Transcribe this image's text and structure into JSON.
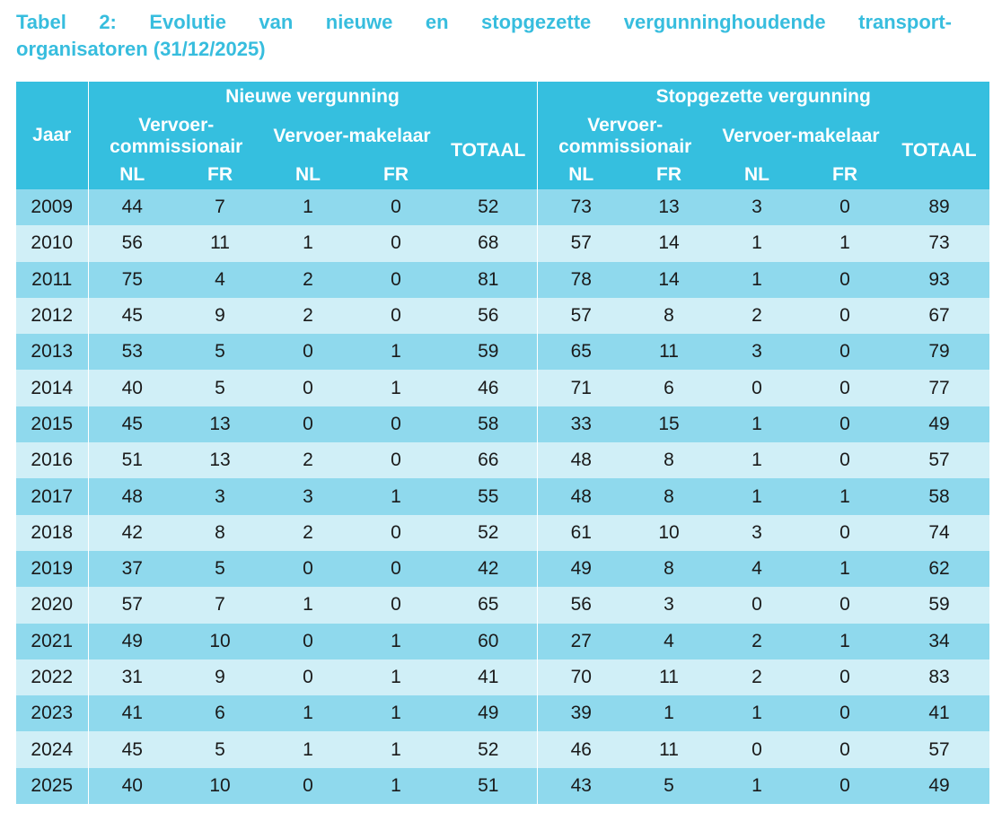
{
  "title": {
    "line1": "Tabel 2: Evolutie van nieuwe en stopgezette vergunninghoudende transport-",
    "line2": "organisatoren (31/12/2025)"
  },
  "table": {
    "header": {
      "jaar": "Jaar",
      "group_new": "Nieuwe vergunning",
      "group_stopped": "Stopgezette vergunning",
      "sub_commissionair": "Vervoer-commissionair",
      "sub_makelaar": "Vervoer-makelaar",
      "totaal": "TOTAAL",
      "nl": "NL",
      "fr": "FR"
    },
    "rows": [
      {
        "jaar": "2009",
        "n_c_nl": "44",
        "n_c_fr": "7",
        "n_m_nl": "1",
        "n_m_fr": "0",
        "n_tot": "52",
        "s_c_nl": "73",
        "s_c_fr": "13",
        "s_m_nl": "3",
        "s_m_fr": "0",
        "s_tot": "89"
      },
      {
        "jaar": "2010",
        "n_c_nl": "56",
        "n_c_fr": "11",
        "n_m_nl": "1",
        "n_m_fr": "0",
        "n_tot": "68",
        "s_c_nl": "57",
        "s_c_fr": "14",
        "s_m_nl": "1",
        "s_m_fr": "1",
        "s_tot": "73"
      },
      {
        "jaar": "2011",
        "n_c_nl": "75",
        "n_c_fr": "4",
        "n_m_nl": "2",
        "n_m_fr": "0",
        "n_tot": "81",
        "s_c_nl": "78",
        "s_c_fr": "14",
        "s_m_nl": "1",
        "s_m_fr": "0",
        "s_tot": "93"
      },
      {
        "jaar": "2012",
        "n_c_nl": "45",
        "n_c_fr": "9",
        "n_m_nl": "2",
        "n_m_fr": "0",
        "n_tot": "56",
        "s_c_nl": "57",
        "s_c_fr": "8",
        "s_m_nl": "2",
        "s_m_fr": "0",
        "s_tot": "67"
      },
      {
        "jaar": "2013",
        "n_c_nl": "53",
        "n_c_fr": "5",
        "n_m_nl": "0",
        "n_m_fr": "1",
        "n_tot": "59",
        "s_c_nl": "65",
        "s_c_fr": "11",
        "s_m_nl": "3",
        "s_m_fr": "0",
        "s_tot": "79"
      },
      {
        "jaar": "2014",
        "n_c_nl": "40",
        "n_c_fr": "5",
        "n_m_nl": "0",
        "n_m_fr": "1",
        "n_tot": "46",
        "s_c_nl": "71",
        "s_c_fr": "6",
        "s_m_nl": "0",
        "s_m_fr": "0",
        "s_tot": "77"
      },
      {
        "jaar": "2015",
        "n_c_nl": "45",
        "n_c_fr": "13",
        "n_m_nl": "0",
        "n_m_fr": "0",
        "n_tot": "58",
        "s_c_nl": "33",
        "s_c_fr": "15",
        "s_m_nl": "1",
        "s_m_fr": "0",
        "s_tot": "49"
      },
      {
        "jaar": "2016",
        "n_c_nl": "51",
        "n_c_fr": "13",
        "n_m_nl": "2",
        "n_m_fr": "0",
        "n_tot": "66",
        "s_c_nl": "48",
        "s_c_fr": "8",
        "s_m_nl": "1",
        "s_m_fr": "0",
        "s_tot": "57"
      },
      {
        "jaar": "2017",
        "n_c_nl": "48",
        "n_c_fr": "3",
        "n_m_nl": "3",
        "n_m_fr": "1",
        "n_tot": "55",
        "s_c_nl": "48",
        "s_c_fr": "8",
        "s_m_nl": "1",
        "s_m_fr": "1",
        "s_tot": "58"
      },
      {
        "jaar": "2018",
        "n_c_nl": "42",
        "n_c_fr": "8",
        "n_m_nl": "2",
        "n_m_fr": "0",
        "n_tot": "52",
        "s_c_nl": "61",
        "s_c_fr": "10",
        "s_m_nl": "3",
        "s_m_fr": "0",
        "s_tot": "74"
      },
      {
        "jaar": "2019",
        "n_c_nl": "37",
        "n_c_fr": "5",
        "n_m_nl": "0",
        "n_m_fr": "0",
        "n_tot": "42",
        "s_c_nl": "49",
        "s_c_fr": "8",
        "s_m_nl": "4",
        "s_m_fr": "1",
        "s_tot": "62"
      },
      {
        "jaar": "2020",
        "n_c_nl": "57",
        "n_c_fr": "7",
        "n_m_nl": "1",
        "n_m_fr": "0",
        "n_tot": "65",
        "s_c_nl": "56",
        "s_c_fr": "3",
        "s_m_nl": "0",
        "s_m_fr": "0",
        "s_tot": "59"
      },
      {
        "jaar": "2021",
        "n_c_nl": "49",
        "n_c_fr": "10",
        "n_m_nl": "0",
        "n_m_fr": "1",
        "n_tot": "60",
        "s_c_nl": "27",
        "s_c_fr": "4",
        "s_m_nl": "2",
        "s_m_fr": "1",
        "s_tot": "34"
      },
      {
        "jaar": "2022",
        "n_c_nl": "31",
        "n_c_fr": "9",
        "n_m_nl": "0",
        "n_m_fr": "1",
        "n_tot": "41",
        "s_c_nl": "70",
        "s_c_fr": "11",
        "s_m_nl": "2",
        "s_m_fr": "0",
        "s_tot": "83"
      },
      {
        "jaar": "2023",
        "n_c_nl": "41",
        "n_c_fr": "6",
        "n_m_nl": "1",
        "n_m_fr": "1",
        "n_tot": "49",
        "s_c_nl": "39",
        "s_c_fr": "1",
        "s_m_nl": "1",
        "s_m_fr": "0",
        "s_tot": "41"
      },
      {
        "jaar": "2024",
        "n_c_nl": "45",
        "n_c_fr": "5",
        "n_m_nl": "1",
        "n_m_fr": "1",
        "n_tot": "52",
        "s_c_nl": "46",
        "s_c_fr": "11",
        "s_m_nl": "0",
        "s_m_fr": "0",
        "s_tot": "57"
      },
      {
        "jaar": "2025",
        "n_c_nl": "40",
        "n_c_fr": "10",
        "n_m_nl": "0",
        "n_m_fr": "1",
        "n_tot": "51",
        "s_c_nl": "43",
        "s_c_fr": "5",
        "s_m_nl": "1",
        "s_m_fr": "0",
        "s_tot": "49"
      }
    ]
  },
  "colors": {
    "title": "#37bdde",
    "header_bg": "#35bfdf",
    "row_dark": "#8fd9ed",
    "row_light": "#d0eff7"
  }
}
